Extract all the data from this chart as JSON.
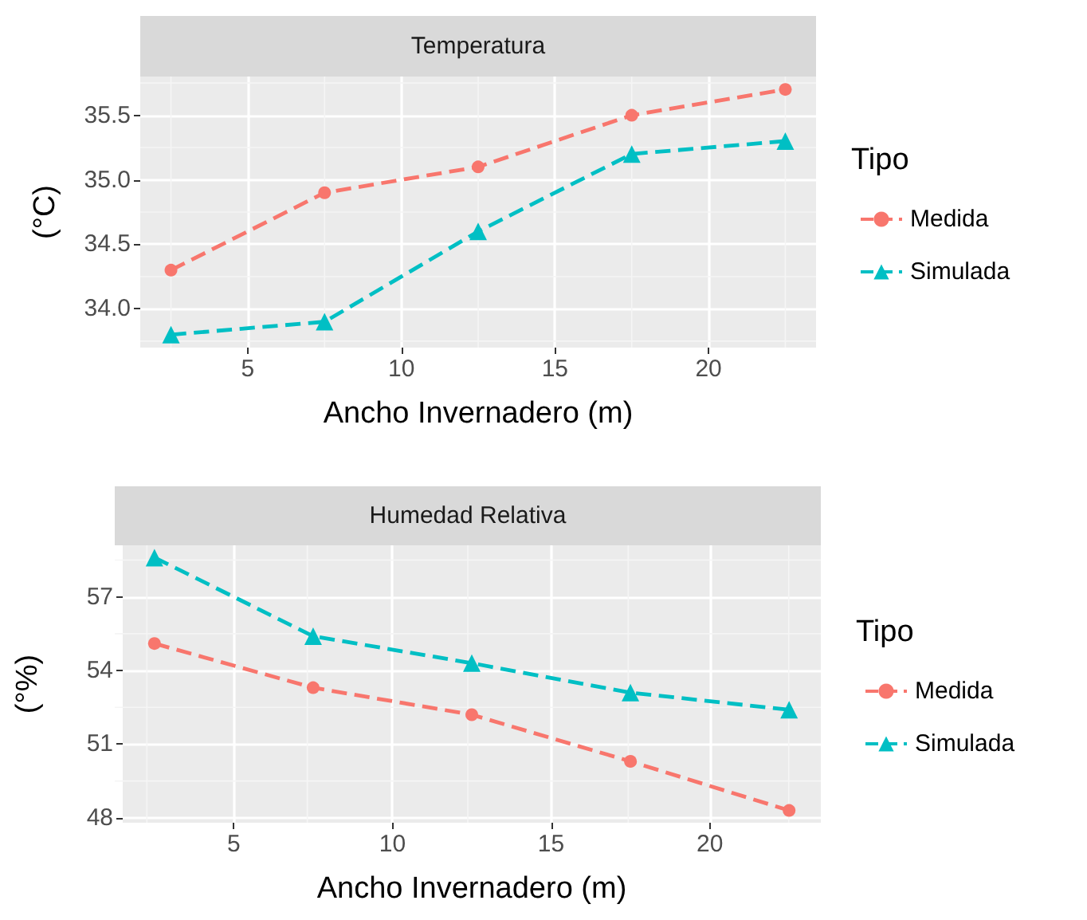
{
  "chart_data": [
    {
      "type": "line",
      "title": "Temperatura",
      "xlabel": "Ancho Invernadero (m)",
      "ylabel": "(°C)",
      "legend_title": "Tipo",
      "legend": "right",
      "grid": true,
      "line_style": "dashed",
      "x": [
        2.5,
        7.5,
        12.5,
        17.5,
        22.5
      ],
      "xlim": [
        1.5,
        23.5
      ],
      "xticks": [
        5,
        10,
        15,
        20
      ],
      "ylim": [
        33.7,
        35.8
      ],
      "yticks": [
        {
          "value": 34,
          "label": "34.0"
        },
        {
          "value": 34.5,
          "label": "34.5"
        },
        {
          "value": 35,
          "label": "35.0"
        },
        {
          "value": 35.5,
          "label": "35.5"
        }
      ],
      "series": [
        {
          "name": "Medida",
          "color": "#f8766d",
          "marker": "circle",
          "values": [
            34.3,
            34.9,
            35.1,
            35.5,
            35.7
          ]
        },
        {
          "name": "Simulada",
          "color": "#00bfc4",
          "marker": "triangle",
          "values": [
            33.8,
            33.9,
            34.6,
            35.2,
            35.3
          ]
        }
      ]
    },
    {
      "type": "line",
      "title": "Humedad Relativa",
      "xlabel": "Ancho Invernadero (m)",
      "ylabel": "(°%)",
      "legend_title": "Tipo",
      "legend": "right",
      "grid": true,
      "line_style": "dashed",
      "x": [
        2.5,
        7.5,
        12.5,
        17.5,
        22.5
      ],
      "xlim": [
        1.5,
        23.5
      ],
      "xticks": [
        5,
        10,
        15,
        20
      ],
      "ylim": [
        47.8,
        59.1
      ],
      "yticks": [
        48,
        51,
        54,
        57
      ],
      "series": [
        {
          "name": "Medida",
          "color": "#f8766d",
          "marker": "circle",
          "values": [
            55.1,
            53.3,
            52.2,
            50.3,
            48.3
          ]
        },
        {
          "name": "Simulada",
          "color": "#00bfc4",
          "marker": "triangle",
          "values": [
            58.6,
            55.4,
            54.3,
            53.1,
            52.4
          ]
        }
      ]
    }
  ]
}
